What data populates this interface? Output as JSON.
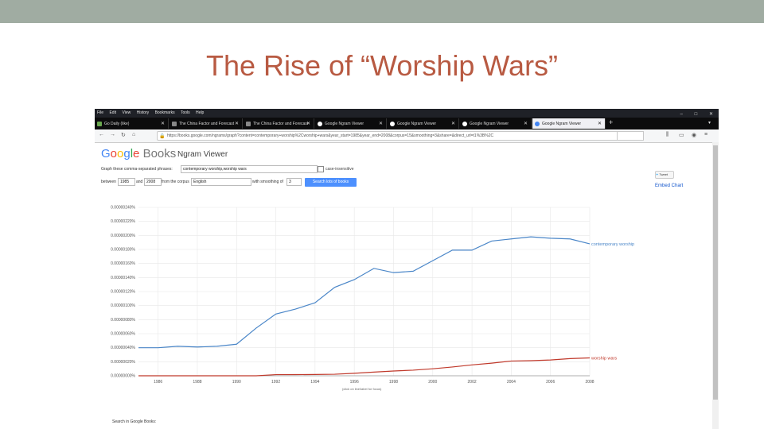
{
  "slide": {
    "title": "The Rise of “Worship Wars”"
  },
  "browser": {
    "menu": [
      "File",
      "Edit",
      "View",
      "History",
      "Bookmarks",
      "Tools",
      "Help"
    ],
    "tabs": [
      {
        "label": "Go Daily (like)",
        "active": false
      },
      {
        "label": "The China Factor and Forecast",
        "active": false
      },
      {
        "label": "The China Factor and Forecast",
        "active": false
      },
      {
        "label": "Google Ngram Viewer",
        "active": false
      },
      {
        "label": "Google Ngram Viewer",
        "active": false
      },
      {
        "label": "Google Ngram Viewer",
        "active": false
      },
      {
        "label": "Google Ngram Viewer",
        "active": true
      }
    ],
    "url": "https://books.google.com/ngrams/graph?content=contemporary+worship%2Cworship+wars&year_start=1985&year_end=2008&corpus=15&smoothing=3&share=&direct_url=t1%3B%2C"
  },
  "ngram": {
    "brand": "Google Books",
    "product": "Ngram Viewer",
    "query_label": "Graph these comma-separated phrases:",
    "query_value": "contemporary worship,worship wars",
    "case_label": "case-insensitive",
    "between_label": "between",
    "start_year": "1985",
    "and_label": "and",
    "end_year": "2008",
    "corpus_label": "from the corpus",
    "corpus_value": "English",
    "smoothing_label": "with smoothing of",
    "smoothing_value": "3",
    "search_button": "Search lots of books",
    "tweet": "Tweet",
    "embed": "Embed Chart",
    "footer": "Search in Google Books:",
    "credit": "(click on line/label for focus)"
  },
  "colors": {
    "series1": "#4a86c8",
    "series2": "#c0392b",
    "title": "#b85a42"
  },
  "chart_data": {
    "type": "line",
    "x": [
      1985,
      1986,
      1987,
      1988,
      1989,
      1990,
      1991,
      1992,
      1993,
      1994,
      1995,
      1996,
      1997,
      1998,
      1999,
      2000,
      2001,
      2002,
      2003,
      2004,
      2005,
      2006,
      2007,
      2008
    ],
    "series": [
      {
        "name": "contemporary worship",
        "values": [
          4e-07,
          4e-07,
          4.2e-07,
          4.1e-07,
          4.2e-07,
          4.5e-07,
          6.8e-07,
          8.8e-07,
          9.5e-07,
          1.04e-06,
          1.26e-06,
          1.37e-06,
          1.53e-06,
          1.47e-06,
          1.49e-06,
          1.64e-06,
          1.79e-06,
          1.79e-06,
          1.92e-06,
          1.95e-06,
          1.98e-06,
          1.96e-06,
          1.95e-06,
          1.88e-06
        ]
      },
      {
        "name": "worship wars",
        "values": [
          0,
          0,
          0,
          0,
          0,
          0,
          0,
          1.6e-08,
          1.7e-08,
          1.8e-08,
          2.2e-08,
          3.5e-08,
          5.2e-08,
          6.8e-08,
          8e-08,
          1e-07,
          1.25e-07,
          1.55e-07,
          1.8e-07,
          2.1e-07,
          2.15e-07,
          2.25e-07,
          2.45e-07,
          2.55e-07
        ]
      }
    ],
    "ylim": [
      0,
      2.4e-06
    ],
    "yticks": [
      "0.00000240%",
      "0.00000220%",
      "0.00000200%",
      "0.00000180%",
      "0.00000160%",
      "0.00000140%",
      "0.00000120%",
      "0.00000100%",
      "0.00000080%",
      "0.00000060%",
      "0.00000040%",
      "0.00000020%",
      "0.00000000%"
    ],
    "xticks": [
      "1986",
      "1988",
      "1990",
      "1992",
      "1994",
      "1996",
      "1998",
      "2000",
      "2002",
      "2004",
      "2006",
      "2008"
    ],
    "grid": true
  }
}
